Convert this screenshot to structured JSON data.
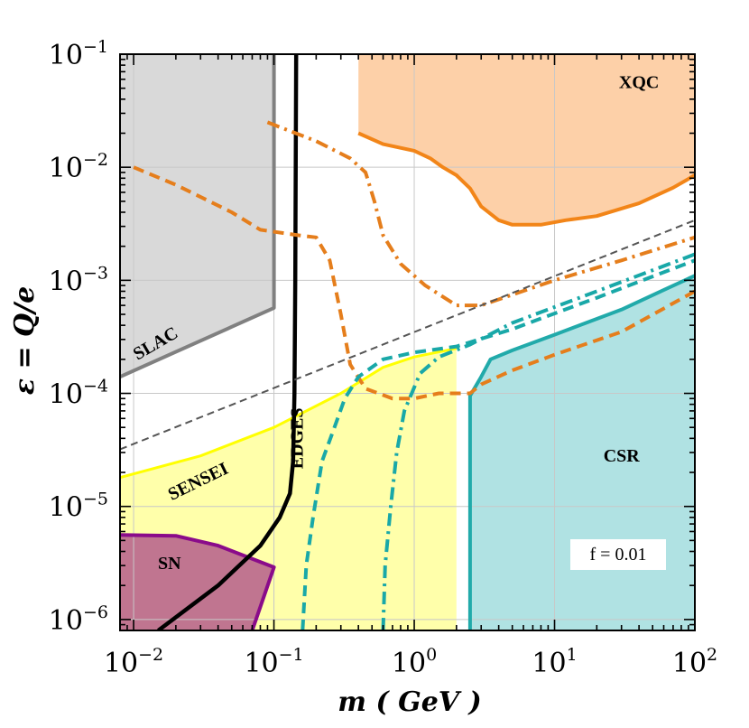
{
  "chart_data": {
    "type": "line",
    "x_scale": "log",
    "y_scale": "log",
    "xlim": [
      0.008,
      100
    ],
    "ylim": [
      8e-07,
      0.1
    ],
    "grid": true,
    "xlabel": "m ( GeV )",
    "ylabel": "ε = Q/e",
    "x_ticks": [
      {
        "value": 0.01,
        "base": "10",
        "exp": "−2"
      },
      {
        "value": 0.1,
        "base": "10",
        "exp": "−1"
      },
      {
        "value": 1,
        "base": "10",
        "exp": "0"
      },
      {
        "value": 10,
        "base": "10",
        "exp": "1"
      },
      {
        "value": 100,
        "base": "10",
        "exp": "2"
      }
    ],
    "y_ticks": [
      {
        "value": 1e-06,
        "base": "10",
        "exp": "−6"
      },
      {
        "value": 1e-05,
        "base": "10",
        "exp": "−5"
      },
      {
        "value": 0.0001,
        "base": "10",
        "exp": "−4"
      },
      {
        "value": 0.001,
        "base": "10",
        "exp": "−3"
      },
      {
        "value": 0.01,
        "base": "10",
        "exp": "−2"
      },
      {
        "value": 0.1,
        "base": "10",
        "exp": "−1"
      }
    ],
    "annotation": "f = 0.01",
    "regions": [
      {
        "name": "SLAC",
        "fill": "#d9d9d9",
        "edge": "#808080",
        "polygon": [
          [
            0.008,
            0.1
          ],
          [
            0.1,
            0.1
          ],
          [
            0.1,
            0.00057
          ],
          [
            0.008,
            0.00014
          ]
        ],
        "boundary": [
          [
            0.008,
            0.00014
          ],
          [
            0.1,
            0.00057
          ],
          [
            0.1,
            0.1
          ]
        ]
      },
      {
        "name": "XQC",
        "fill": "#fdd0a8",
        "edge": "#f28518",
        "polygon": [
          [
            0.4,
            0.1
          ],
          [
            0.4,
            0.02
          ],
          [
            0.6,
            0.016
          ],
          [
            1.0,
            0.014
          ],
          [
            1.3,
            0.012
          ],
          [
            1.6,
            0.01
          ],
          [
            2.0,
            0.0085
          ],
          [
            2.5,
            0.0065
          ],
          [
            3.0,
            0.0045
          ],
          [
            4.0,
            0.0034
          ],
          [
            5.0,
            0.0031
          ],
          [
            8.0,
            0.0031
          ],
          [
            12.0,
            0.0034
          ],
          [
            20.0,
            0.0037
          ],
          [
            40.0,
            0.0048
          ],
          [
            70.0,
            0.0066
          ],
          [
            100.0,
            0.0085
          ],
          [
            100.0,
            0.1
          ]
        ],
        "boundary": [
          [
            0.4,
            0.02
          ],
          [
            0.6,
            0.016
          ],
          [
            1.0,
            0.014
          ],
          [
            1.3,
            0.012
          ],
          [
            1.6,
            0.01
          ],
          [
            2.0,
            0.0085
          ],
          [
            2.5,
            0.0065
          ],
          [
            3.0,
            0.0045
          ],
          [
            4.0,
            0.0034
          ],
          [
            5.0,
            0.0031
          ],
          [
            8.0,
            0.0031
          ],
          [
            12.0,
            0.0034
          ],
          [
            20.0,
            0.0037
          ],
          [
            40.0,
            0.0048
          ],
          [
            70.0,
            0.0066
          ],
          [
            100.0,
            0.0085
          ]
        ]
      },
      {
        "name": "SENSEI",
        "fill": "#ffffaa",
        "edge": "#ffff00",
        "polygon": [
          [
            0.008,
            1.8e-05
          ],
          [
            0.03,
            2.8e-05
          ],
          [
            0.1,
            5e-05
          ],
          [
            0.3,
            0.0001
          ],
          [
            0.6,
            0.00017
          ],
          [
            1.0,
            0.00021
          ],
          [
            2.0,
            0.00025
          ],
          [
            2.0,
            8e-07
          ],
          [
            0.008,
            8e-07
          ]
        ],
        "boundary": [
          [
            0.008,
            1.8e-05
          ],
          [
            0.03,
            2.8e-05
          ],
          [
            0.1,
            5e-05
          ],
          [
            0.3,
            0.0001
          ],
          [
            0.6,
            0.00017
          ],
          [
            1.0,
            0.00021
          ],
          [
            2.0,
            0.00025
          ]
        ]
      },
      {
        "name": "CSR",
        "fill": "#b0e2e3",
        "edge": "#21aaaa",
        "polygon": [
          [
            2.5,
            8e-07
          ],
          [
            2.5,
            9.5e-05
          ],
          [
            3.0,
            0.00014
          ],
          [
            3.5,
            0.0002
          ],
          [
            5.0,
            0.00024
          ],
          [
            10.0,
            0.00033
          ],
          [
            30.0,
            0.00055
          ],
          [
            60.0,
            0.00082
          ],
          [
            100.0,
            0.0011
          ],
          [
            100.0,
            8e-07
          ]
        ],
        "boundary": [
          [
            2.5,
            8e-07
          ],
          [
            2.5,
            9.5e-05
          ],
          [
            3.0,
            0.00014
          ],
          [
            3.5,
            0.0002
          ],
          [
            5.0,
            0.00024
          ],
          [
            10.0,
            0.00033
          ],
          [
            30.0,
            0.00055
          ],
          [
            60.0,
            0.00082
          ],
          [
            100.0,
            0.0011
          ]
        ]
      },
      {
        "name": "SN",
        "fill": "#c07590",
        "edge": "#8a0b8a",
        "polygon": [
          [
            0.008,
            5.6e-06
          ],
          [
            0.02,
            5.5e-06
          ],
          [
            0.04,
            4.5e-06
          ],
          [
            0.1,
            2.9e-06
          ],
          [
            0.07,
            8e-07
          ],
          [
            0.008,
            8e-07
          ]
        ],
        "boundary": [
          [
            0.008,
            5.6e-06
          ],
          [
            0.02,
            5.5e-06
          ],
          [
            0.04,
            4.5e-06
          ],
          [
            0.1,
            2.9e-06
          ],
          [
            0.07,
            8e-07
          ]
        ]
      }
    ],
    "curves": [
      {
        "color": "#000000",
        "style": "solid",
        "width": 4.5,
        "points": [
          [
            0.015,
            8e-07
          ],
          [
            0.04,
            2e-06
          ],
          [
            0.08,
            4.5e-06
          ],
          [
            0.11,
            8e-06
          ],
          [
            0.13,
            1.3e-05
          ],
          [
            0.137,
            2.5e-05
          ],
          [
            0.14,
            0.0001
          ],
          [
            0.142,
            0.001
          ],
          [
            0.143,
            0.01
          ],
          [
            0.144,
            0.1
          ]
        ]
      },
      {
        "color": "#e57e1c",
        "style": "dashed",
        "width": 4,
        "points": [
          [
            0.01,
            0.01
          ],
          [
            0.02,
            0.007
          ],
          [
            0.05,
            0.004
          ],
          [
            0.08,
            0.0028
          ],
          [
            0.15,
            0.0025
          ],
          [
            0.2,
            0.0024
          ],
          [
            0.25,
            0.0015
          ],
          [
            0.3,
            0.0005
          ],
          [
            0.35,
            0.00018
          ],
          [
            0.45,
            0.00011
          ],
          [
            0.7,
            9e-05
          ],
          [
            1.0,
            9e-05
          ],
          [
            1.5,
            0.0001
          ],
          [
            2.5,
            0.0001
          ],
          [
            3.0,
            0.00012
          ],
          [
            5.0,
            0.00016
          ],
          [
            10.0,
            0.00022
          ],
          [
            30.0,
            0.00035
          ],
          [
            100.0,
            0.0008
          ]
        ]
      },
      {
        "color": "#e57e1c",
        "style": "dashdot",
        "width": 4,
        "points": [
          [
            0.09,
            0.025
          ],
          [
            0.2,
            0.017
          ],
          [
            0.35,
            0.012
          ],
          [
            0.45,
            0.009
          ],
          [
            0.52,
            0.005
          ],
          [
            0.6,
            0.0025
          ],
          [
            0.8,
            0.0014
          ],
          [
            1.2,
            0.0009
          ],
          [
            2.0,
            0.0006
          ],
          [
            3.0,
            0.0006
          ],
          [
            10.0,
            0.001
          ],
          [
            30.0,
            0.0015
          ],
          [
            100.0,
            0.0024
          ]
        ]
      },
      {
        "color": "#19a8a8",
        "style": "dashed",
        "width": 4,
        "points": [
          [
            0.16,
            8e-07
          ],
          [
            0.17,
            3e-06
          ],
          [
            0.19,
            8e-06
          ],
          [
            0.22,
            2.5e-05
          ],
          [
            0.27,
            5e-05
          ],
          [
            0.32,
            9e-05
          ],
          [
            0.4,
            0.00014
          ],
          [
            0.6,
            0.0002
          ],
          [
            1.0,
            0.00023
          ],
          [
            2.0,
            0.00026
          ],
          [
            5.0,
            0.00037
          ],
          [
            20.0,
            0.0007
          ],
          [
            100.0,
            0.0015
          ]
        ]
      },
      {
        "color": "#19a8a8",
        "style": "dashdot",
        "width": 4,
        "points": [
          [
            0.6,
            8e-07
          ],
          [
            0.62,
            3e-06
          ],
          [
            0.68,
            1e-05
          ],
          [
            0.75,
            3e-05
          ],
          [
            0.85,
            7e-05
          ],
          [
            1.1,
            0.00015
          ],
          [
            1.5,
            0.00021
          ],
          [
            2.5,
            0.00027
          ],
          [
            5.0,
            0.00042
          ],
          [
            20.0,
            0.0008
          ],
          [
            100.0,
            0.0017
          ]
        ]
      },
      {
        "color": "#555555",
        "style": "thin-dashed",
        "width": 2,
        "points": [
          [
            0.008,
            3.2e-05
          ],
          [
            100.0,
            0.0034
          ]
        ]
      }
    ],
    "labels": [
      {
        "text": "SLAC",
        "x": 0.015,
        "y": 0.00025,
        "rotate": -30
      },
      {
        "text": "XQC",
        "x": 40,
        "y": 0.05,
        "rotate": 0
      },
      {
        "text": "SENSEI",
        "x": 0.03,
        "y": 1.5e-05,
        "rotate": -26
      },
      {
        "text": "EDGES",
        "x": 0.16,
        "y": 4e-05,
        "rotate": -90
      },
      {
        "text": "CSR",
        "x": 30,
        "y": 2.5e-05,
        "rotate": 0
      },
      {
        "text": "SN",
        "x": 0.018,
        "y": 2.8e-06,
        "rotate": 0
      }
    ]
  }
}
